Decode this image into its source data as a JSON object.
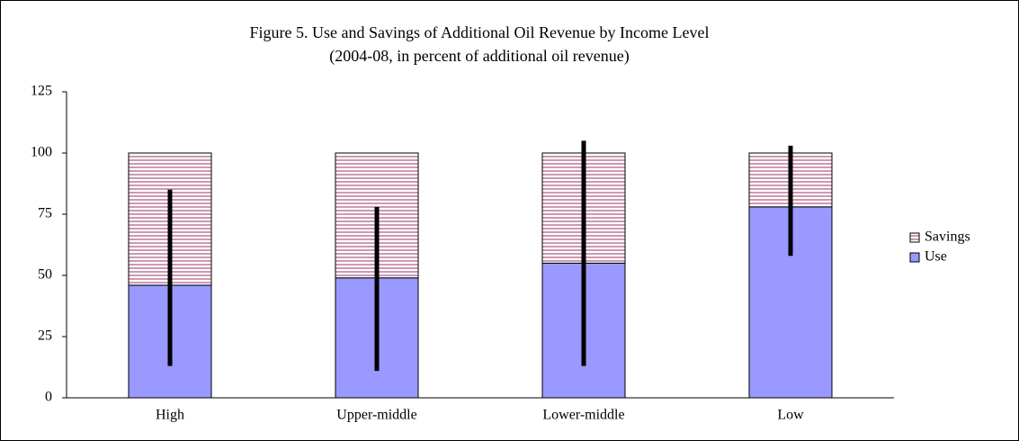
{
  "chart_data": {
    "type": "bar",
    "title": "Figure 5. Use and Savings of Additional Oil Revenue by Income Level",
    "subtitle": "(2004-08, in percent of additional oil revenue)",
    "stacked": true,
    "categories": [
      "High",
      "Upper-middle",
      "Lower-middle",
      "Low"
    ],
    "series": [
      {
        "name": "Use",
        "color": "#9999ff",
        "values": [
          46,
          49,
          55,
          78
        ]
      },
      {
        "name": "Savings",
        "color": "#993366",
        "values": [
          54,
          51,
          45,
          22
        ]
      }
    ],
    "error_bars": {
      "low": [
        13,
        11,
        13,
        58
      ],
      "high": [
        85,
        78,
        105,
        103
      ]
    },
    "ylim": [
      0,
      125
    ],
    "yticks": [
      0,
      25,
      50,
      75,
      100,
      125
    ],
    "legend": "right"
  }
}
